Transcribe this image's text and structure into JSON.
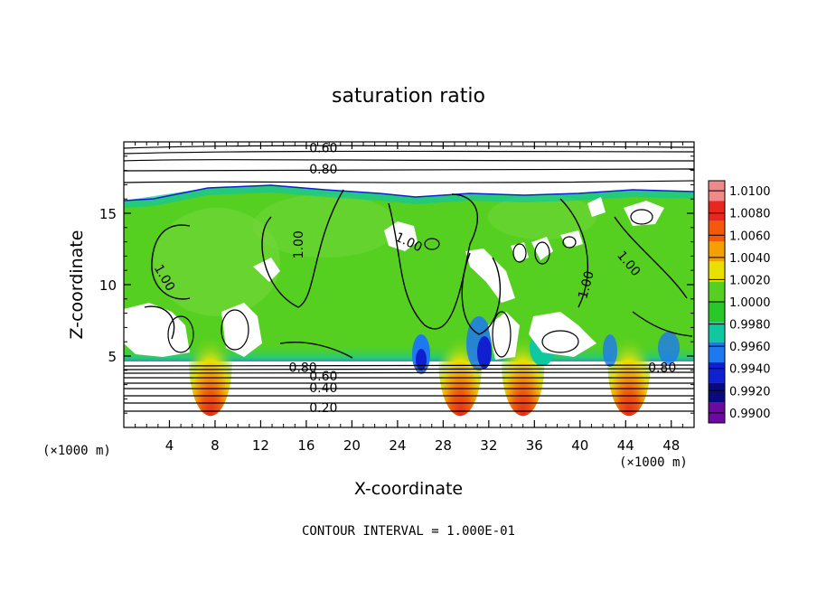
{
  "chart_data": {
    "type": "heatmap",
    "title": "saturation ratio",
    "xlabel": "X-coordinate",
    "ylabel": "Z-coordinate",
    "x_unit": "(×1000 m)",
    "y_unit": "(×1000 m)",
    "xlim": [
      0,
      50
    ],
    "ylim": [
      0,
      20
    ],
    "x_ticks": [
      "4",
      "8",
      "12",
      "16",
      "20",
      "24",
      "28",
      "32",
      "36",
      "40",
      "44",
      "48"
    ],
    "x_tick_values": [
      4,
      8,
      12,
      16,
      20,
      24,
      28,
      32,
      36,
      40,
      44,
      48
    ],
    "y_ticks": [
      "5",
      "10",
      "15"
    ],
    "y_tick_values": [
      5,
      10,
      15
    ],
    "colorbar": {
      "levels": [
        "1.0100",
        "1.0080",
        "1.0060",
        "1.0040",
        "1.0020",
        "1.0000",
        "0.9980",
        "0.9960",
        "0.9940",
        "0.9920",
        "0.9900"
      ],
      "colors": [
        "#f08a8a",
        "#e8281e",
        "#f25a0a",
        "#f5a000",
        "#e8e000",
        "#55d020",
        "#28c828",
        "#10c8a0",
        "#1e78f0",
        "#1020d0",
        "#0a0a80",
        "#6a0aa0"
      ]
    },
    "contour_labels": [
      {
        "text": "0.60",
        "x": 17.5,
        "z": 19.6
      },
      {
        "text": "0.80",
        "x": 17.5,
        "z": 18.1
      },
      {
        "text": "1.00",
        "x": 3.6,
        "z": 10.5,
        "rotate": 60
      },
      {
        "text": "1.00",
        "x": 15.3,
        "z": 12.8,
        "rotate": -90
      },
      {
        "text": "1.00",
        "x": 25.0,
        "z": 13.0,
        "rotate": 25
      },
      {
        "text": "1.00",
        "x": 40.5,
        "z": 10.0,
        "rotate": -75
      },
      {
        "text": "1.00",
        "x": 44.3,
        "z": 11.5,
        "rotate": 50
      },
      {
        "text": "0.80",
        "x": 15.7,
        "z": 4.2
      },
      {
        "text": "0.60",
        "x": 17.5,
        "z": 3.6
      },
      {
        "text": "0.40",
        "x": 17.5,
        "z": 2.8
      },
      {
        "text": "0.20",
        "x": 17.5,
        "z": 1.4
      },
      {
        "text": "0.80",
        "x": 47.2,
        "z": 4.2
      }
    ],
    "hot_columns_x": [
      7.6,
      29.5,
      35.0,
      44.3
    ],
    "footer": "CONTOUR INTERVAL = 1.000E-01"
  }
}
